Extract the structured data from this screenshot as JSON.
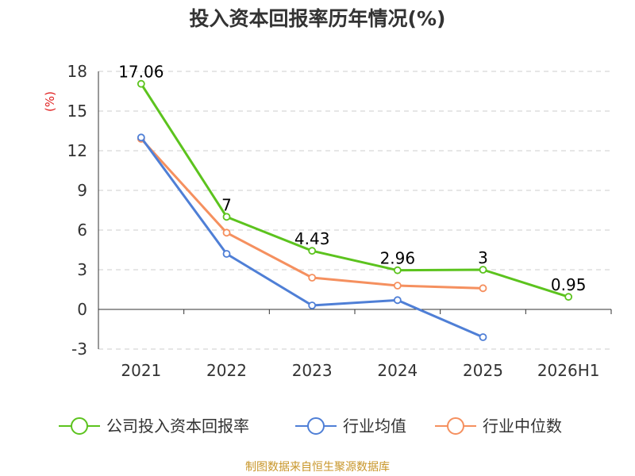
{
  "colors": {
    "company": "#5cc31e",
    "industry_avg": "#4f7fd6",
    "industry_median": "#f5905f",
    "grid": "#cccccc",
    "axis": "#333333",
    "unit": "#e02020",
    "source": "#c8962a"
  },
  "chart_data": {
    "type": "line",
    "title": "投入资本回报率历年情况(%)",
    "ylabel": "(%)",
    "xlabel": "",
    "categories": [
      "2021",
      "2022",
      "2023",
      "2024",
      "2025",
      "2026H1"
    ],
    "ylim": [
      -3,
      18
    ],
    "yticks": [
      -3,
      0,
      3,
      6,
      9,
      12,
      15,
      18
    ],
    "grid": true,
    "legend_position": "bottom",
    "series": [
      {
        "name": "公司投入资本回报率",
        "color_key": "company",
        "values": [
          17.06,
          7,
          4.43,
          2.96,
          3,
          0.95
        ],
        "labels": [
          "17.06",
          "7",
          "4.43",
          "2.96",
          "3",
          "0.95"
        ],
        "show_labels": true
      },
      {
        "name": "行业均值",
        "color_key": "industry_avg",
        "values": [
          13.0,
          4.2,
          0.3,
          0.7,
          -2.1,
          null
        ],
        "show_labels": false
      },
      {
        "name": "行业中位数",
        "color_key": "industry_median",
        "values": [
          12.9,
          5.8,
          2.4,
          1.8,
          1.6,
          null
        ],
        "show_labels": false
      }
    ]
  },
  "source_text": "制图数据来自恒生聚源数据库"
}
